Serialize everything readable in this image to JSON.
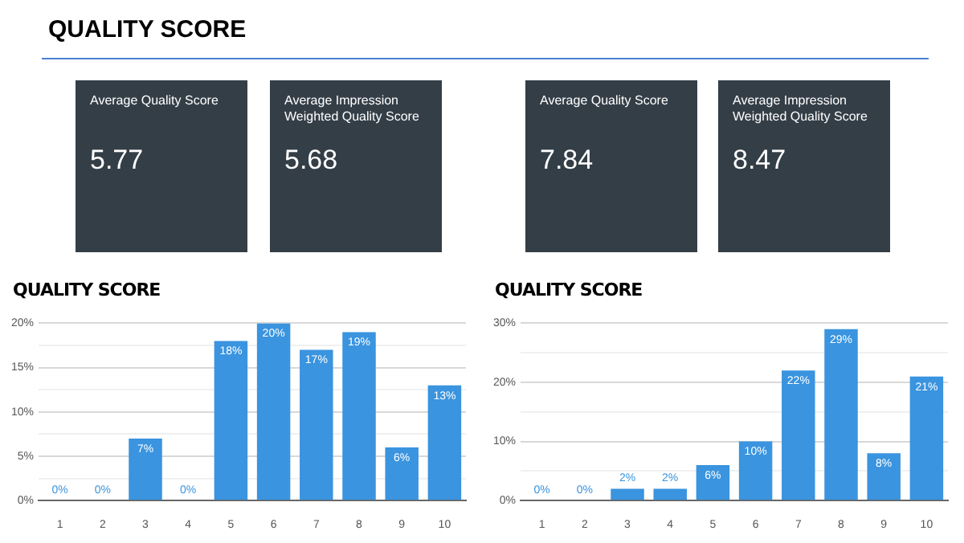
{
  "chart_data": [
    {
      "type": "other",
      "title": "QUALITY SCORE",
      "annotations": [
        "Average Quality Score",
        "5.77",
        "Average Impression Weighted Quality Score",
        "5.68",
        "Average Quality Score",
        "7.84",
        "Average Impression Weighted Quality Score",
        "8.47"
      ]
    },
    {
      "type": "bar",
      "title": "QUALITY SCORE",
      "categories": [
        "1",
        "2",
        "3",
        "4",
        "5",
        "6",
        "7",
        "8",
        "9",
        "10"
      ],
      "values": [
        0,
        0,
        7,
        0,
        18,
        20,
        17,
        19,
        6,
        13
      ],
      "value_labels": [
        "0%",
        "0%",
        "7%",
        "0%",
        "18%",
        "20%",
        "17%",
        "19%",
        "6%",
        "13%"
      ],
      "color": "#3a94df",
      "ylim": [
        0,
        20
      ],
      "yticks": [
        {
          "value": 0,
          "label": "0%"
        },
        {
          "value": 2.5,
          "label": null
        },
        {
          "value": 5,
          "label": "5%"
        },
        {
          "value": 7.5,
          "label": null
        },
        {
          "value": 10,
          "label": "10%"
        },
        {
          "value": 12.5,
          "label": null
        },
        {
          "value": 15,
          "label": "15%"
        },
        {
          "value": 17.5,
          "label": null
        },
        {
          "value": 20,
          "label": "20%"
        }
      ],
      "grid": "y",
      "legend": false
    },
    {
      "type": "bar",
      "title": "QUALITY SCORE",
      "categories": [
        "1",
        "2",
        "3",
        "4",
        "5",
        "6",
        "7",
        "8",
        "9",
        "10"
      ],
      "values": [
        0,
        0,
        2,
        2,
        6,
        10,
        22,
        29,
        8,
        21
      ],
      "value_labels": [
        "0%",
        "0%",
        "2%",
        "2%",
        "6%",
        "10%",
        "22%",
        "29%",
        "8%",
        "21%"
      ],
      "color": "#3a94df",
      "ylim": [
        0,
        30
      ],
      "yticks": [
        {
          "value": 0,
          "label": "0%"
        },
        {
          "value": 5,
          "label": null
        },
        {
          "value": 10,
          "label": "10%"
        },
        {
          "value": 15,
          "label": null
        },
        {
          "value": 20,
          "label": "20%"
        },
        {
          "value": 25,
          "label": null
        },
        {
          "value": 30,
          "label": "30%"
        }
      ],
      "grid": "y",
      "legend": false
    }
  ]
}
